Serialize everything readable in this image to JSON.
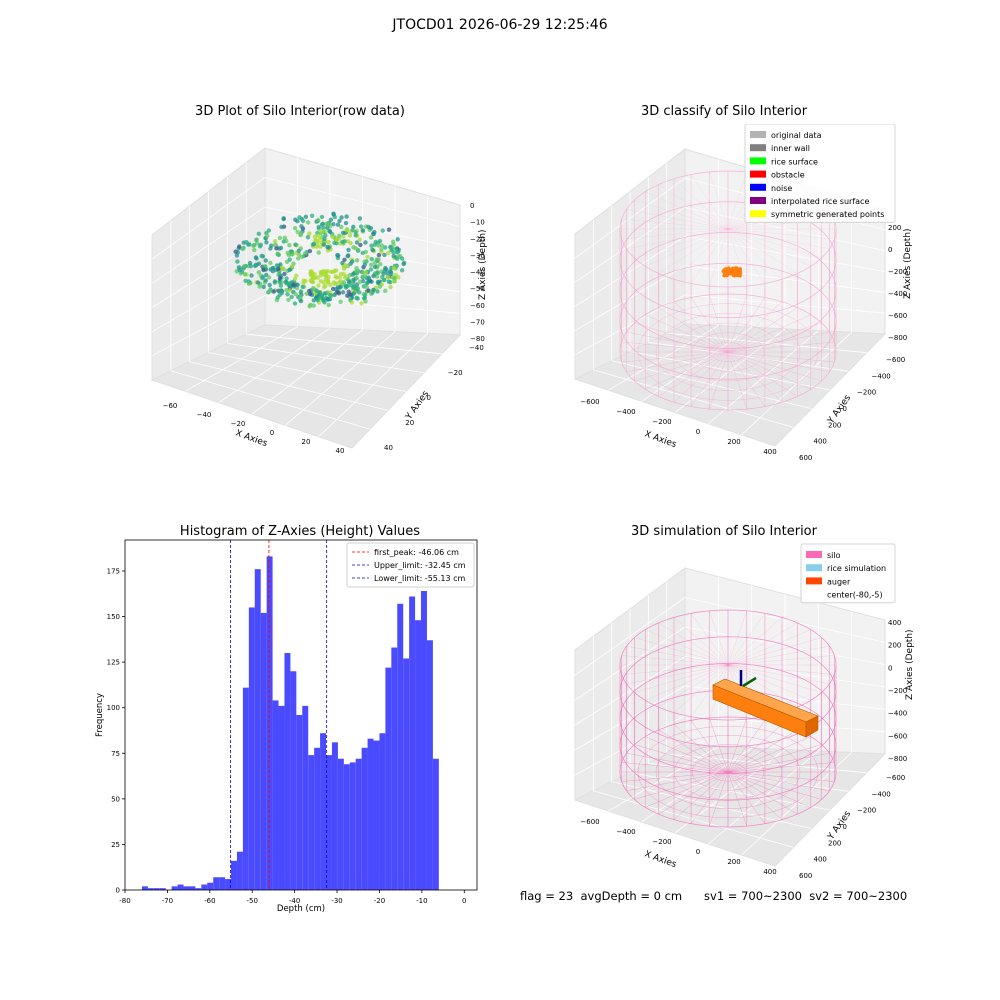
{
  "suptitle": "JTOCD01 2026-06-29 12:25:46",
  "status_text": "flag = 23  avgDepth = 0 cm      sv1 = 700~2300  sv2 = 700~2300",
  "chart_data": [
    {
      "type": "scatter",
      "subtype": "3d",
      "title": "3D Plot of Silo Interior(row data)",
      "xlabel": "X Axies",
      "ylabel": "Y Axies",
      "zlabel": "Z Axies (Depth)",
      "xticks": [
        "−60",
        "−40",
        "−20",
        "0",
        "20",
        "40"
      ],
      "yticks": [
        "−40",
        "−20",
        "0",
        "20",
        "40"
      ],
      "zticks": [
        "0",
        "−10",
        "−20",
        "−30",
        "−40",
        "−50",
        "−60",
        "−70",
        "−80"
      ],
      "colormap": "viridis",
      "zlim": [
        -80,
        0
      ]
    },
    {
      "type": "scatter",
      "subtype": "3d",
      "title": "3D classify of Silo Interior",
      "xlabel": "X Axies",
      "ylabel": "Y Axies",
      "zlabel": "Z Axies (Depth)",
      "xticks": [
        "−600",
        "−400",
        "−200",
        "0",
        "200",
        "400"
      ],
      "yticks": [
        "−600",
        "−400",
        "−200",
        "0",
        "200",
        "400",
        "600"
      ],
      "zticks": [
        "200",
        "0",
        "−200",
        "−400",
        "−600",
        "−800"
      ],
      "legend_position": "top-right",
      "legend": [
        {
          "label": "original data",
          "color": "#b3b3b3"
        },
        {
          "label": "inner wall",
          "color": "#808080"
        },
        {
          "label": "rice surface",
          "color": "#00ff00"
        },
        {
          "label": "obstacle",
          "color": "#ff0000"
        },
        {
          "label": "noise",
          "color": "#0000ff"
        },
        {
          "label": "interpolated rice surface",
          "color": "#800080"
        },
        {
          "label": "symmetric generated points",
          "color": "#ffff00"
        }
      ],
      "wire_color": "#f7a1cf",
      "cluster_color": "#ff7f0e"
    },
    {
      "type": "bar",
      "subtype": "histogram",
      "title": "Histogram of Z-Axies (Height) Values",
      "xlabel": "Depth (cm)",
      "ylabel": "Frequency",
      "xlim": [
        -80,
        3
      ],
      "ylim": [
        0,
        192
      ],
      "xticks": [
        -80,
        -70,
        -60,
        -50,
        -40,
        -30,
        -20,
        -10,
        0
      ],
      "yticks": [
        0,
        25,
        50,
        75,
        100,
        125,
        150,
        175
      ],
      "bar_color": "#4a4aff",
      "bins": [
        {
          "left": -76,
          "right": -74.6,
          "value": 2
        },
        {
          "left": -74.6,
          "right": -73.2,
          "value": 1
        },
        {
          "left": -73.2,
          "right": -71.8,
          "value": 1
        },
        {
          "left": -71.8,
          "right": -70.4,
          "value": 1
        },
        {
          "left": -70.4,
          "right": -69.0,
          "value": 0
        },
        {
          "left": -69.0,
          "right": -67.6,
          "value": 2
        },
        {
          "left": -67.6,
          "right": -66.2,
          "value": 3
        },
        {
          "left": -66.2,
          "right": -64.8,
          "value": 2
        },
        {
          "left": -64.8,
          "right": -63.4,
          "value": 2
        },
        {
          "left": -63.4,
          "right": -62.0,
          "value": 1
        },
        {
          "left": -62.0,
          "right": -60.6,
          "value": 3
        },
        {
          "left": -60.6,
          "right": -59.2,
          "value": 4
        },
        {
          "left": -59.2,
          "right": -57.8,
          "value": 7
        },
        {
          "left": -57.8,
          "right": -56.4,
          "value": 7
        },
        {
          "left": -56.4,
          "right": -55.0,
          "value": 6
        },
        {
          "left": -55.0,
          "right": -53.6,
          "value": 16
        },
        {
          "left": -53.6,
          "right": -52.2,
          "value": 21
        },
        {
          "left": -52.2,
          "right": -50.8,
          "value": 111
        },
        {
          "left": -50.8,
          "right": -49.4,
          "value": 155
        },
        {
          "left": -49.4,
          "right": -48.0,
          "value": 176
        },
        {
          "left": -48.0,
          "right": -46.6,
          "value": 152
        },
        {
          "left": -46.6,
          "right": -45.2,
          "value": 183
        },
        {
          "left": -45.2,
          "right": -43.8,
          "value": 104
        },
        {
          "left": -43.8,
          "right": -42.4,
          "value": 101
        },
        {
          "left": -42.4,
          "right": -41.0,
          "value": 130
        },
        {
          "left": -41.0,
          "right": -39.6,
          "value": 120
        },
        {
          "left": -39.6,
          "right": -38.2,
          "value": 96
        },
        {
          "left": -38.2,
          "right": -36.8,
          "value": 101
        },
        {
          "left": -36.8,
          "right": -35.4,
          "value": 74
        },
        {
          "left": -35.4,
          "right": -34.0,
          "value": 78
        },
        {
          "left": -34.0,
          "right": -32.6,
          "value": 86
        },
        {
          "left": -32.6,
          "right": -31.2,
          "value": 74
        },
        {
          "left": -31.2,
          "right": -29.8,
          "value": 81
        },
        {
          "left": -29.8,
          "right": -28.4,
          "value": 72
        },
        {
          "left": -28.4,
          "right": -27.0,
          "value": 69
        },
        {
          "left": -27.0,
          "right": -25.6,
          "value": 70
        },
        {
          "left": -25.6,
          "right": -24.2,
          "value": 72
        },
        {
          "left": -24.2,
          "right": -22.8,
          "value": 78
        },
        {
          "left": -22.8,
          "right": -21.4,
          "value": 83
        },
        {
          "left": -21.4,
          "right": -20.0,
          "value": 82
        },
        {
          "left": -20.0,
          "right": -18.6,
          "value": 86
        },
        {
          "left": -18.6,
          "right": -17.2,
          "value": 122
        },
        {
          "left": -17.2,
          "right": -15.8,
          "value": 133
        },
        {
          "left": -15.8,
          "right": -14.4,
          "value": 157
        },
        {
          "left": -14.4,
          "right": -13.0,
          "value": 127
        },
        {
          "left": -13.0,
          "right": -11.6,
          "value": 161
        },
        {
          "left": -11.6,
          "right": -10.2,
          "value": 148
        },
        {
          "left": -10.2,
          "right": -8.8,
          "value": 164
        },
        {
          "left": -8.8,
          "right": -7.4,
          "value": 137
        },
        {
          "left": -7.4,
          "right": -6.0,
          "value": 72
        }
      ],
      "vlines": [
        {
          "x": -46.06,
          "color": "#ff0000",
          "label": "first_peak: -46.06 cm"
        },
        {
          "x": -32.45,
          "color": "#0000cc",
          "label": "Upper_limit: -32.45 cm"
        },
        {
          "x": -55.13,
          "color": "#0000cc",
          "label": "Lower_limit: -55.13 cm"
        }
      ],
      "legend_position": "top-right"
    },
    {
      "type": "scatter",
      "subtype": "3d",
      "title": "3D simulation of Silo Interior",
      "xlabel": "X Axies",
      "ylabel": "Y Axies",
      "zlabel": "Z Axies (Depth)",
      "xticks": [
        "−600",
        "−400",
        "−200",
        "0",
        "200",
        "400"
      ],
      "yticks": [
        "−600",
        "−400",
        "−200",
        "0",
        "200",
        "400",
        "600"
      ],
      "zticks": [
        "400",
        "200",
        "0",
        "−200",
        "−400",
        "−600",
        "−800"
      ],
      "legend_position": "top-right",
      "legend": [
        {
          "label": "silo",
          "color": "#ff69b4"
        },
        {
          "label": "rice simulation",
          "color": "#87ceeb"
        },
        {
          "label": "auger",
          "color": "#ff4500"
        },
        {
          "label": "center(-80,-5)",
          "color": ""
        }
      ],
      "wire_color": "#f56fb8",
      "auger_color": "#ff7f0e"
    }
  ]
}
